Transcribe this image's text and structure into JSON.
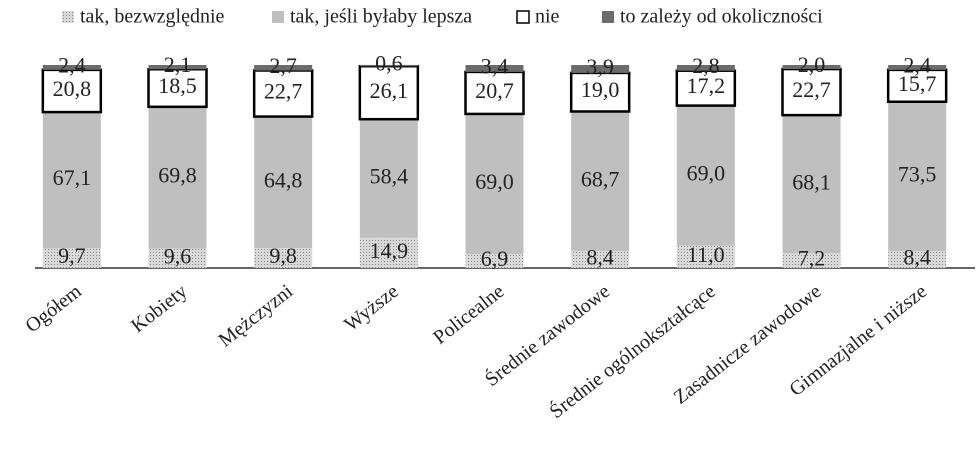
{
  "chart_data": {
    "type": "stacked_bar",
    "categories": [
      "Ogółem",
      "Kobiety",
      "Mężczyzni",
      "Wyższe",
      "Policealne",
      "Średnie zawodowe",
      "Średnie ogólnokształcące",
      "Zasadnicze zawodowe",
      "Gimnazjalne i niższe"
    ],
    "ylim": [
      0,
      100
    ],
    "legend": "top",
    "series": [
      {
        "name": "tak, bezwzględnie",
        "color": "#d9d9d9",
        "pattern": "dots",
        "values": [
          9.7,
          9.6,
          9.8,
          14.9,
          6.9,
          8.4,
          11.0,
          7.2,
          8.4
        ],
        "value_labels": [
          "9,7",
          "9,6",
          "9,8",
          "14,9",
          "6,9",
          "8,4",
          "11,0",
          "7,2",
          "8,4"
        ]
      },
      {
        "name": "tak, jeśli byłaby lepsza",
        "color": "#bfbfbf",
        "values": [
          67.1,
          69.8,
          64.8,
          58.4,
          69.0,
          68.7,
          69.0,
          68.1,
          73.5
        ],
        "value_labels": [
          "67,1",
          "69,8",
          "64,8",
          "58,4",
          "69,0",
          "68,7",
          "69,0",
          "68,1",
          "73,5"
        ]
      },
      {
        "name": "nie",
        "color": "#ffffff",
        "edgecolor": "#000000",
        "values": [
          20.8,
          18.5,
          22.7,
          26.1,
          20.7,
          19.0,
          17.2,
          22.7,
          15.7
        ],
        "value_labels": [
          "20,8",
          "18,5",
          "22,7",
          "26,1",
          "20,7",
          "19,0",
          "17,2",
          "22,7",
          "15,7"
        ]
      },
      {
        "name": "to zależy od okoliczności",
        "color": "#6b6b6b",
        "values": [
          2.4,
          2.1,
          2.7,
          0.6,
          3.4,
          3.9,
          2.8,
          2.0,
          2.4
        ],
        "value_labels": [
          "2,4",
          "2,1",
          "2,7",
          "0,6",
          "3,4",
          "3,9",
          "2,8",
          "2,0",
          "2,4"
        ]
      }
    ]
  }
}
